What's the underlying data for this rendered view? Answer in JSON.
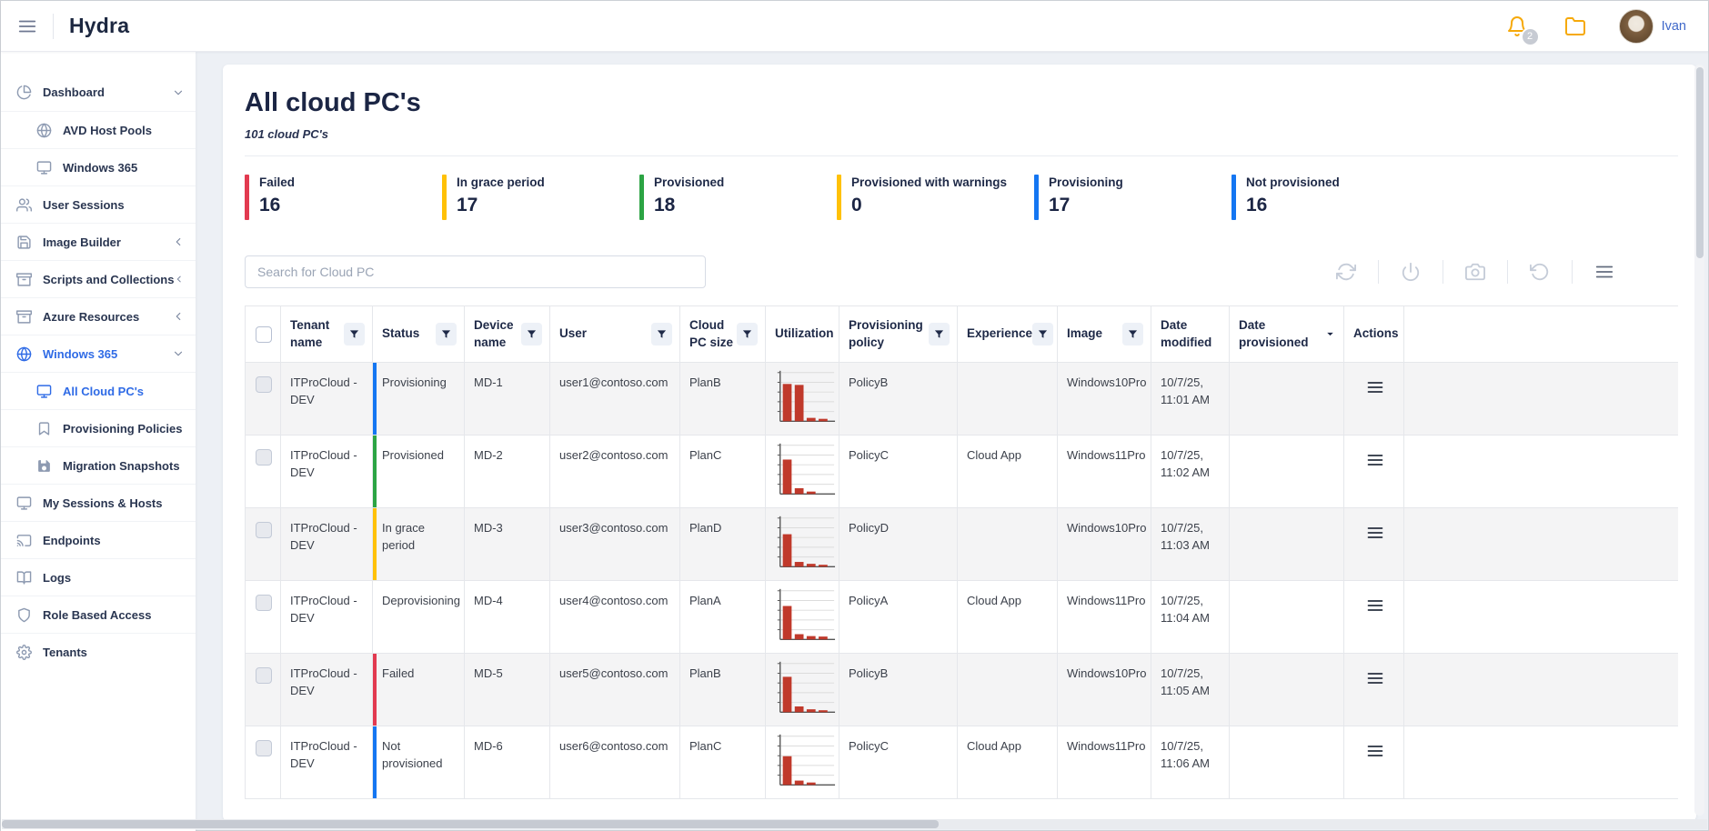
{
  "topbar": {
    "app_title": "Hydra",
    "notification_count": "2",
    "user_name": "Ivan"
  },
  "sidebar": {
    "items": [
      {
        "label": "Dashboard",
        "icon": "pie-chart-icon",
        "chevron": "down"
      },
      {
        "label": "AVD Host Pools",
        "icon": "globe-icon",
        "indent": true
      },
      {
        "label": "Windows 365",
        "icon": "monitor-icon",
        "indent": true
      },
      {
        "label": "User Sessions",
        "icon": "users-icon"
      },
      {
        "label": "Image Builder",
        "icon": "save-icon",
        "chevron": "left"
      },
      {
        "label": "Scripts and Collections",
        "icon": "archive-icon",
        "chevron": "left"
      },
      {
        "label": "Azure Resources",
        "icon": "archive-icon",
        "chevron": "left"
      },
      {
        "label": "Windows 365",
        "icon": "globe-icon",
        "chevron": "down",
        "active": true
      },
      {
        "label": "All Cloud PC's",
        "icon": "monitor-icon",
        "indent": true,
        "active": true
      },
      {
        "label": "Provisioning Policies",
        "icon": "bookmark-icon",
        "indent": true
      },
      {
        "label": "Migration Snapshots",
        "icon": "save-filled-icon",
        "indent": true
      },
      {
        "label": "My Sessions & Hosts",
        "icon": "monitor-icon"
      },
      {
        "label": "Endpoints",
        "icon": "cast-icon"
      },
      {
        "label": "Logs",
        "icon": "book-icon"
      },
      {
        "label": "Role Based Access",
        "icon": "shield-icon"
      },
      {
        "label": "Tenants",
        "icon": "gear-icon"
      }
    ]
  },
  "main": {
    "title": "All cloud PC's",
    "subtitle": "101 cloud PC's",
    "status_cards": [
      {
        "label": "Failed",
        "value": "16",
        "color": "#e23a50"
      },
      {
        "label": "In grace period",
        "value": "17",
        "color": "#ffc107"
      },
      {
        "label": "Provisioned",
        "value": "18",
        "color": "#2ca444"
      },
      {
        "label": "Provisioned with warnings",
        "value": "0",
        "color": "#ffc107"
      },
      {
        "label": "Provisioning",
        "value": "17",
        "color": "#1476f2"
      },
      {
        "label": "Not provisioned",
        "value": "16",
        "color": "#1476f2"
      }
    ],
    "search_placeholder": "Search for Cloud PC",
    "toolbar_icons": [
      "refresh-icon",
      "power-icon",
      "camera-icon",
      "undo-icon",
      "menu-icon"
    ],
    "table": {
      "columns": [
        {
          "key": "checkbox",
          "type": "checkbox"
        },
        {
          "key": "tenant",
          "label": "Tenant name",
          "filter": true
        },
        {
          "key": "status",
          "label": "Status",
          "filter": true
        },
        {
          "key": "device",
          "label": "Device name",
          "filter": true
        },
        {
          "key": "user",
          "label": "User",
          "filter": true
        },
        {
          "key": "size",
          "label": "Cloud PC size",
          "filter": true
        },
        {
          "key": "utilization",
          "label": "Utilization"
        },
        {
          "key": "policy",
          "label": "Provisioning policy",
          "filter": true
        },
        {
          "key": "experience",
          "label": "Experience",
          "filter": true
        },
        {
          "key": "image",
          "label": "Image",
          "filter": true
        },
        {
          "key": "date_modified",
          "label": "Date modified"
        },
        {
          "key": "date_provisioned",
          "label": "Date provisioned",
          "sort": "desc"
        },
        {
          "key": "actions",
          "label": "Actions"
        }
      ],
      "rows": [
        {
          "tenant": "ITProCloud - DEV",
          "status": "Provisioning",
          "status_color": "#1476f2",
          "device": "MD-1",
          "user": "user1@contoso.com",
          "size": "PlanB",
          "utilization": [
            78,
            76,
            7,
            5
          ],
          "policy": "PolicyB",
          "experience": "",
          "image": "Windows10Pro",
          "date_modified": "10/7/25, 11:01 AM",
          "date_provisioned": ""
        },
        {
          "tenant": "ITProCloud - DEV",
          "status": "Provisioned",
          "status_color": "#2ca444",
          "device": "MD-2",
          "user": "user2@contoso.com",
          "size": "PlanC",
          "utilization": [
            72,
            12,
            5,
            0
          ],
          "policy": "PolicyC",
          "experience": "Cloud App",
          "image": "Windows11Pro",
          "date_modified": "10/7/25, 11:02 AM",
          "date_provisioned": ""
        },
        {
          "tenant": "ITProCloud - DEV",
          "status": "In grace period",
          "status_color": "#ffc107",
          "device": "MD-3",
          "user": "user3@contoso.com",
          "size": "PlanD",
          "utilization": [
            68,
            10,
            6,
            4
          ],
          "policy": "PolicyD",
          "experience": "",
          "image": "Windows10Pro",
          "date_modified": "10/7/25, 11:03 AM",
          "date_provisioned": ""
        },
        {
          "tenant": "ITProCloud - DEV",
          "status": "Deprovisioning",
          "status_color": "",
          "device": "MD-4",
          "user": "user4@contoso.com",
          "size": "PlanA",
          "utilization": [
            70,
            11,
            7,
            6
          ],
          "policy": "PolicyA",
          "experience": "Cloud App",
          "image": "Windows11Pro",
          "date_modified": "10/7/25, 11:04 AM",
          "date_provisioned": ""
        },
        {
          "tenant": "ITProCloud - DEV",
          "status": "Failed",
          "status_color": "#e23a50",
          "device": "MD-5",
          "user": "user5@contoso.com",
          "size": "PlanB",
          "utilization": [
            74,
            12,
            6,
            4
          ],
          "policy": "PolicyB",
          "experience": "",
          "image": "Windows10Pro",
          "date_modified": "10/7/25, 11:05 AM",
          "date_provisioned": ""
        },
        {
          "tenant": "ITProCloud - DEV",
          "status": "Not provisioned",
          "status_color": "#1476f2",
          "device": "MD-6",
          "user": "user6@contoso.com",
          "size": "PlanC",
          "utilization": [
            60,
            9,
            5,
            0
          ],
          "policy": "PolicyC",
          "experience": "Cloud App",
          "image": "Windows11Pro",
          "date_modified": "10/7/25, 11:06 AM",
          "date_provisioned": ""
        }
      ]
    }
  },
  "colors": {
    "accent_blue": "#2f6be6",
    "chart_bar": "#c0392b",
    "amber": "#f6a90a"
  }
}
